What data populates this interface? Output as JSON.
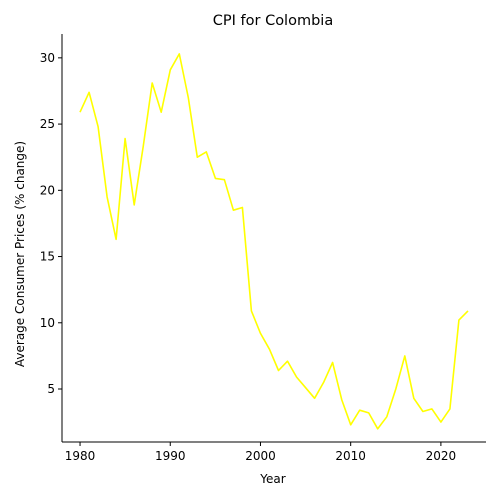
{
  "chart_data": {
    "type": "line",
    "title": "CPI for Colombia",
    "xlabel": "Year",
    "ylabel": "Average Consumer Prices (% change)",
    "xlim": [
      1978,
      2025
    ],
    "ylim": [
      1.0,
      31.8
    ],
    "xticks": [
      1980,
      1990,
      2000,
      2010,
      2020
    ],
    "yticks": [
      5,
      10,
      15,
      20,
      25,
      30
    ],
    "grid": false,
    "line_color": "#ffff00",
    "series": [
      {
        "x": [
          1980,
          1981,
          1982,
          1983,
          1984,
          1985,
          1986,
          1987,
          1988,
          1989,
          1990,
          1991,
          1992,
          1993,
          1994,
          1995,
          1996,
          1997,
          1998,
          1999,
          2000,
          2001,
          2002,
          2003,
          2004,
          2005,
          2006,
          2007,
          2008,
          2009,
          2010,
          2011,
          2012,
          2013,
          2014,
          2015,
          2016,
          2017,
          2018,
          2019,
          2020,
          2021,
          2022,
          2023
        ],
        "values": [
          25.9,
          27.4,
          24.8,
          19.5,
          16.3,
          23.9,
          18.9,
          23.3,
          28.1,
          25.9,
          29.1,
          30.3,
          27.0,
          22.5,
          22.9,
          20.9,
          20.8,
          18.5,
          18.7,
          10.9,
          9.2,
          8.0,
          6.4,
          7.1,
          5.9,
          5.1,
          4.3,
          5.5,
          7.0,
          4.2,
          2.3,
          3.4,
          3.2,
          2.0,
          2.9,
          5.0,
          7.5,
          4.3,
          3.3,
          3.5,
          2.5,
          3.5,
          10.2,
          10.9
        ]
      }
    ]
  }
}
